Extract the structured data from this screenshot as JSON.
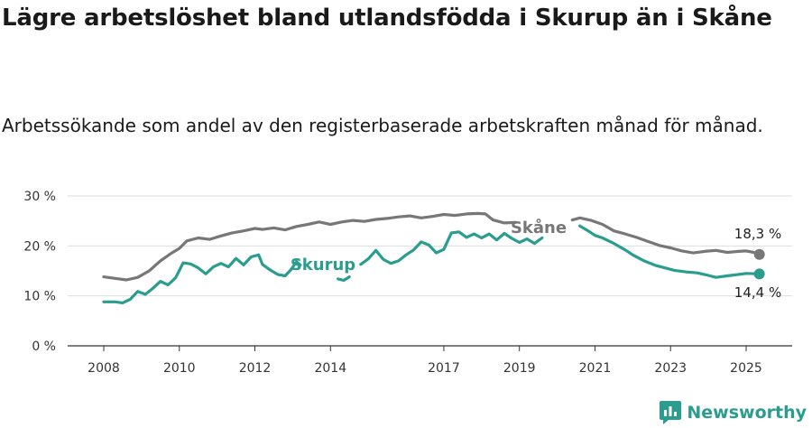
{
  "title": "Lägre arbetslöshet bland utlandsfödda i Skurup än i Skåne",
  "subtitle": "Arbetssökande som andel av den registerbaserade arbetskraften månad för månad.",
  "brand": "Newsworthy",
  "colors": {
    "skurup": "#2a9d8f",
    "skane": "#777777",
    "grid": "#dddddd",
    "axis": "#333333"
  },
  "chart_data": {
    "type": "line",
    "x_unit": "year",
    "xlim": [
      2008,
      2025.5
    ],
    "ylim": [
      0,
      30
    ],
    "y_ticks": [
      {
        "value": 0,
        "label": "0 %"
      },
      {
        "value": 10,
        "label": "10 %"
      },
      {
        "value": 20,
        "label": "20 %"
      },
      {
        "value": 30,
        "label": "30 %"
      }
    ],
    "x_ticks": [
      {
        "value": 2008,
        "label": "2008"
      },
      {
        "value": 2010,
        "label": "2010"
      },
      {
        "value": 2012,
        "label": "2012"
      },
      {
        "value": 2014,
        "label": "2014"
      },
      {
        "value": 2017,
        "label": "2017"
      },
      {
        "value": 2019,
        "label": "2019"
      },
      {
        "value": 2021,
        "label": "2021"
      },
      {
        "value": 2023,
        "label": "2023"
      },
      {
        "value": 2025,
        "label": "2025"
      }
    ],
    "series": [
      {
        "name": "Skåne",
        "color": "#777777",
        "end_label": "18,3 %",
        "segments": [
          [
            [
              2008.0,
              13.8
            ],
            [
              2008.3,
              13.5
            ],
            [
              2008.6,
              13.2
            ],
            [
              2008.9,
              13.7
            ],
            [
              2009.2,
              15.0
            ],
            [
              2009.5,
              17.0
            ],
            [
              2009.8,
              18.6
            ],
            [
              2010.0,
              19.5
            ],
            [
              2010.2,
              21.0
            ],
            [
              2010.5,
              21.6
            ],
            [
              2010.8,
              21.3
            ],
            [
              2011.1,
              22.0
            ],
            [
              2011.4,
              22.6
            ],
            [
              2011.7,
              23.0
            ],
            [
              2012.0,
              23.5
            ],
            [
              2012.2,
              23.3
            ],
            [
              2012.5,
              23.6
            ],
            [
              2012.8,
              23.2
            ],
            [
              2013.1,
              23.9
            ],
            [
              2013.4,
              24.3
            ],
            [
              2013.7,
              24.8
            ],
            [
              2014.0,
              24.3
            ],
            [
              2014.3,
              24.8
            ],
            [
              2014.6,
              25.1
            ],
            [
              2014.9,
              24.9
            ],
            [
              2015.2,
              25.3
            ],
            [
              2015.5,
              25.5
            ],
            [
              2015.8,
              25.8
            ],
            [
              2016.1,
              26.0
            ],
            [
              2016.4,
              25.6
            ],
            [
              2016.7,
              25.9
            ],
            [
              2017.0,
              26.3
            ],
            [
              2017.3,
              26.1
            ],
            [
              2017.6,
              26.4
            ],
            [
              2017.9,
              26.5
            ],
            [
              2018.1,
              26.4
            ],
            [
              2018.3,
              25.2
            ],
            [
              2018.6,
              24.6
            ],
            [
              2018.9,
              24.7
            ]
          ],
          [
            [
              2020.4,
              25.2
            ],
            [
              2020.6,
              25.6
            ],
            [
              2020.9,
              25.1
            ],
            [
              2021.2,
              24.3
            ],
            [
              2021.5,
              23.0
            ],
            [
              2021.8,
              22.4
            ],
            [
              2022.1,
              21.7
            ],
            [
              2022.4,
              20.9
            ],
            [
              2022.7,
              20.1
            ],
            [
              2023.0,
              19.6
            ],
            [
              2023.3,
              19.0
            ],
            [
              2023.6,
              18.6
            ],
            [
              2023.9,
              18.9
            ],
            [
              2024.2,
              19.1
            ],
            [
              2024.5,
              18.7
            ],
            [
              2024.8,
              18.9
            ],
            [
              2025.0,
              19.0
            ],
            [
              2025.2,
              18.7
            ],
            [
              2025.35,
              18.3
            ]
          ]
        ]
      },
      {
        "name": "Skurup",
        "color": "#2a9d8f",
        "end_label": "14,4 %",
        "segments": [
          [
            [
              2008.0,
              8.8
            ],
            [
              2008.3,
              8.8
            ],
            [
              2008.5,
              8.6
            ],
            [
              2008.7,
              9.3
            ],
            [
              2008.9,
              10.9
            ],
            [
              2009.1,
              10.3
            ],
            [
              2009.3,
              11.5
            ],
            [
              2009.5,
              12.9
            ],
            [
              2009.7,
              12.2
            ],
            [
              2009.9,
              13.6
            ],
            [
              2010.1,
              16.6
            ],
            [
              2010.3,
              16.4
            ],
            [
              2010.5,
              15.6
            ],
            [
              2010.7,
              14.4
            ],
            [
              2010.9,
              15.8
            ],
            [
              2011.1,
              16.5
            ],
            [
              2011.3,
              15.8
            ],
            [
              2011.5,
              17.5
            ],
            [
              2011.7,
              16.2
            ],
            [
              2011.9,
              17.8
            ],
            [
              2012.1,
              18.2
            ],
            [
              2012.2,
              16.3
            ],
            [
              2012.4,
              15.2
            ],
            [
              2012.6,
              14.3
            ],
            [
              2012.8,
              14.0
            ],
            [
              2012.95,
              15.2
            ],
            [
              2013.1,
              16.8
            ],
            [
              2013.2,
              16.2
            ]
          ],
          [
            [
              2014.2,
              13.4
            ],
            [
              2014.35,
              13.1
            ],
            [
              2014.5,
              13.8
            ]
          ],
          [
            [
              2014.8,
              16.3
            ],
            [
              2015.0,
              17.4
            ],
            [
              2015.2,
              19.1
            ],
            [
              2015.4,
              17.3
            ],
            [
              2015.6,
              16.5
            ],
            [
              2015.8,
              17.0
            ],
            [
              2016.0,
              18.2
            ],
            [
              2016.2,
              19.2
            ],
            [
              2016.4,
              20.8
            ],
            [
              2016.6,
              20.2
            ],
            [
              2016.8,
              18.6
            ],
            [
              2017.0,
              19.3
            ],
            [
              2017.2,
              22.6
            ],
            [
              2017.4,
              22.8
            ],
            [
              2017.6,
              21.7
            ],
            [
              2017.8,
              22.4
            ],
            [
              2018.0,
              21.6
            ],
            [
              2018.2,
              22.4
            ],
            [
              2018.4,
              21.2
            ],
            [
              2018.6,
              22.5
            ],
            [
              2018.8,
              21.5
            ],
            [
              2019.0,
              20.7
            ],
            [
              2019.2,
              21.4
            ],
            [
              2019.4,
              20.5
            ],
            [
              2019.6,
              21.6
            ]
          ],
          [
            [
              2020.6,
              24.0
            ],
            [
              2020.8,
              23.1
            ],
            [
              2021.0,
              22.1
            ],
            [
              2021.2,
              21.6
            ],
            [
              2021.5,
              20.5
            ],
            [
              2021.8,
              19.2
            ],
            [
              2022.0,
              18.2
            ],
            [
              2022.3,
              17.0
            ],
            [
              2022.6,
              16.1
            ],
            [
              2022.9,
              15.5
            ],
            [
              2023.1,
              15.1
            ],
            [
              2023.4,
              14.8
            ],
            [
              2023.7,
              14.6
            ],
            [
              2024.0,
              14.1
            ],
            [
              2024.2,
              13.7
            ],
            [
              2024.5,
              14.0
            ],
            [
              2024.8,
              14.3
            ],
            [
              2025.0,
              14.5
            ],
            [
              2025.35,
              14.4
            ]
          ]
        ]
      }
    ]
  }
}
